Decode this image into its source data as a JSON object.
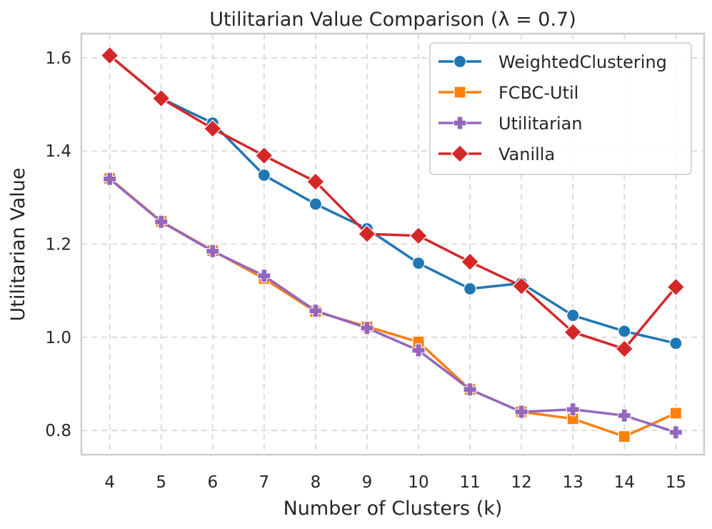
{
  "chart_data": {
    "type": "line",
    "title": "Utilitarian Value Comparison (λ = 0.7)",
    "xlabel": "Number of Clusters (k)",
    "ylabel": "Utilitarian Value",
    "x": [
      4,
      5,
      6,
      7,
      8,
      9,
      10,
      11,
      12,
      13,
      14,
      15
    ],
    "x_tick_labels": [
      "4",
      "5",
      "6",
      "7",
      "8",
      "9",
      "10",
      "11",
      "12",
      "13",
      "14",
      "15"
    ],
    "y_ticks": [
      0.8,
      1.0,
      1.2,
      1.4,
      1.6
    ],
    "y_tick_labels": [
      "0.8",
      "1.0",
      "1.2",
      "1.4",
      "1.6"
    ],
    "xlim": [
      3.45,
      15.55
    ],
    "ylim": [
      0.748,
      1.652
    ],
    "grid": true,
    "legend_position": "top-right",
    "series": [
      {
        "name": "WeightedClustering",
        "color": "#1f77b4",
        "marker": "circle",
        "values": [
          1.605,
          1.513,
          1.46,
          1.348,
          1.286,
          1.233,
          1.159,
          1.104,
          1.116,
          1.047,
          1.013,
          0.987
        ]
      },
      {
        "name": "FCBC-Util",
        "color": "#ff7f0e",
        "marker": "square",
        "values": [
          1.341,
          1.249,
          1.186,
          1.126,
          1.055,
          1.023,
          0.99,
          0.888,
          0.84,
          0.825,
          0.787,
          0.837
        ]
      },
      {
        "name": "Utilitarian",
        "color": "#9467bd",
        "marker": "plus",
        "values": [
          1.34,
          1.248,
          1.185,
          1.132,
          1.057,
          1.02,
          0.972,
          0.888,
          0.84,
          0.845,
          0.832,
          0.796
        ]
      },
      {
        "name": "Vanilla",
        "color": "#d62728",
        "marker": "diamond",
        "values": [
          1.605,
          1.513,
          1.448,
          1.39,
          1.334,
          1.222,
          1.218,
          1.162,
          1.11,
          1.011,
          0.975,
          1.108
        ]
      }
    ]
  }
}
